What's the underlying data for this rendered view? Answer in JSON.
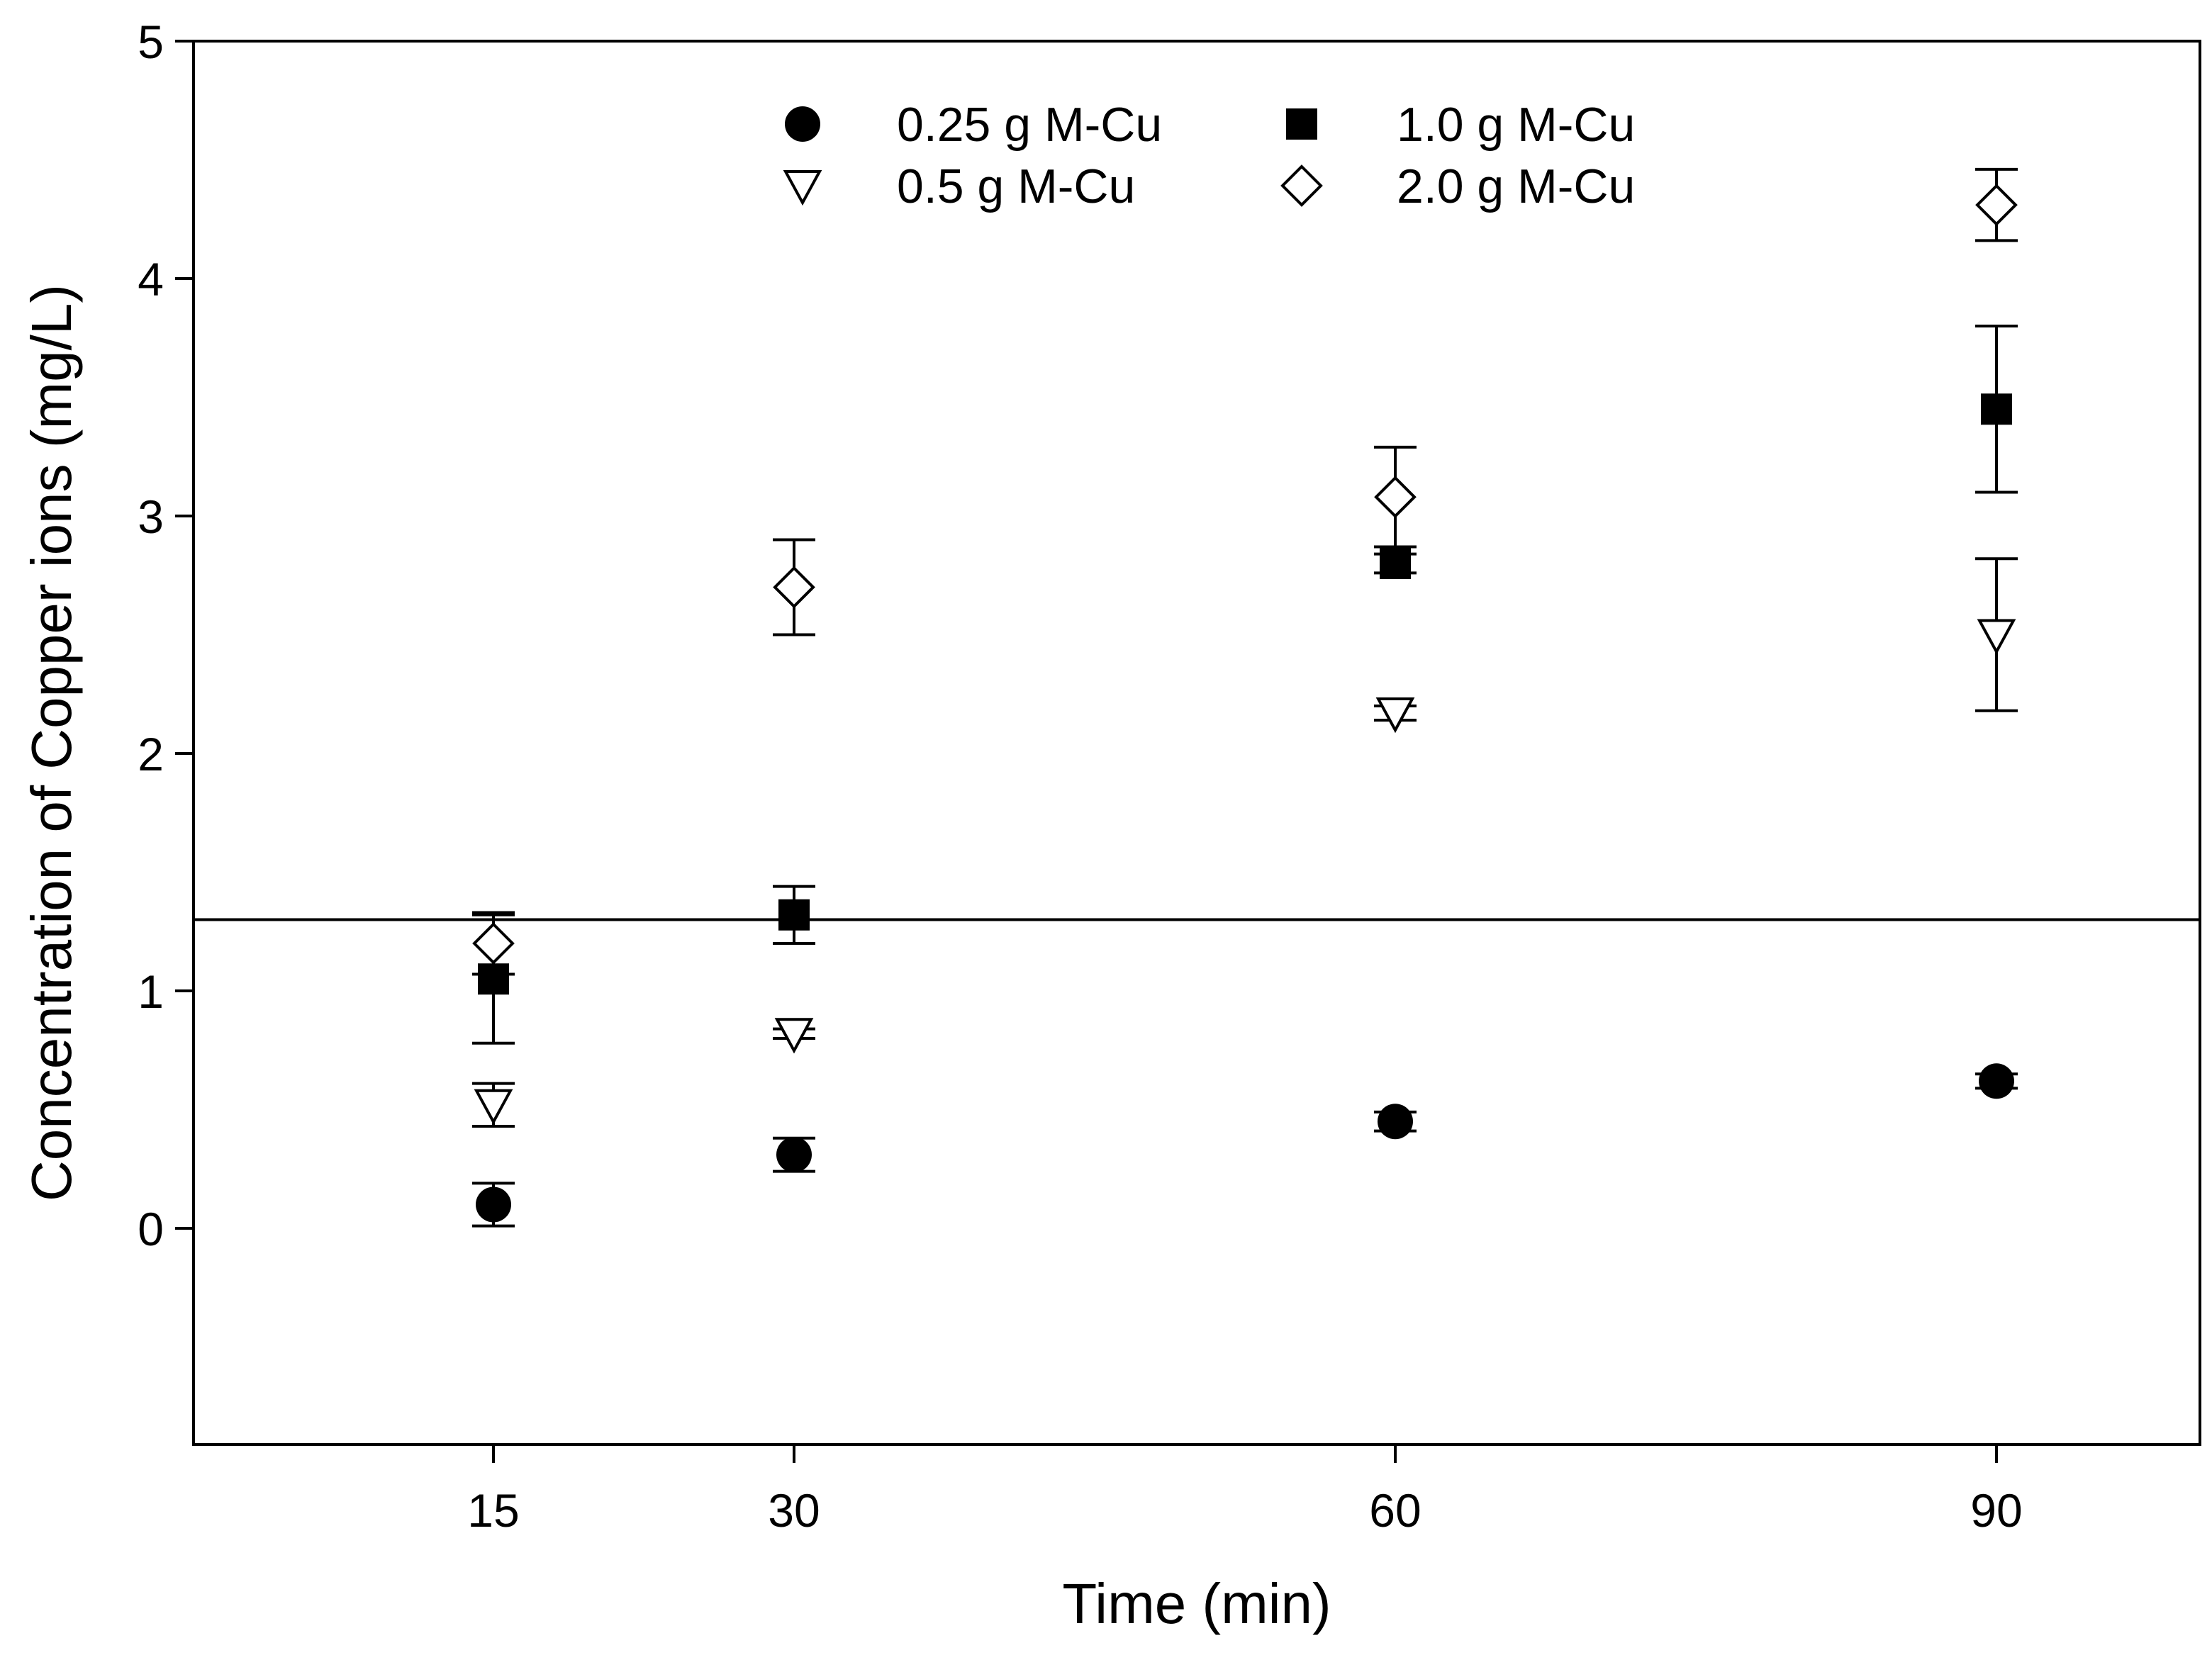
{
  "chart_data": {
    "type": "scatter",
    "xlabel": "Time (min)",
    "ylabel": "Concentration of Copper ions (mg/L)",
    "x_categories": [
      15,
      30,
      60,
      90
    ],
    "yticks": [
      0,
      1,
      2,
      3,
      4,
      5
    ],
    "ylim": [
      -0.9,
      5
    ],
    "grid": false,
    "legend_position": "top-center",
    "reference_line": {
      "y": 1.3
    },
    "series": [
      {
        "name": "0.25 g M-Cu",
        "marker": "filled-circle",
        "color": "#000000",
        "values": [
          0.1,
          0.31,
          0.45,
          0.62
        ],
        "err": [
          0.09,
          0.07,
          0.04,
          0.03
        ]
      },
      {
        "name": "1.0 g M-Cu",
        "marker": "filled-square",
        "color": "#000000",
        "values": [
          1.05,
          1.32,
          2.8,
          3.45
        ],
        "err": [
          0.27,
          0.12,
          0.04,
          0.35
        ]
      },
      {
        "name": "0.5 g M-Cu",
        "marker": "open-triangle-down",
        "color": "#000000",
        "values": [
          0.52,
          0.82,
          2.17,
          2.5
        ],
        "err": [
          0.09,
          0.02,
          0.03,
          0.32
        ]
      },
      {
        "name": "2.0 g M-Cu",
        "marker": "open-diamond",
        "color": "#000000",
        "values": [
          1.2,
          2.7,
          3.08,
          4.31
        ],
        "err": [
          0.13,
          0.2,
          0.21,
          0.15
        ]
      }
    ]
  }
}
